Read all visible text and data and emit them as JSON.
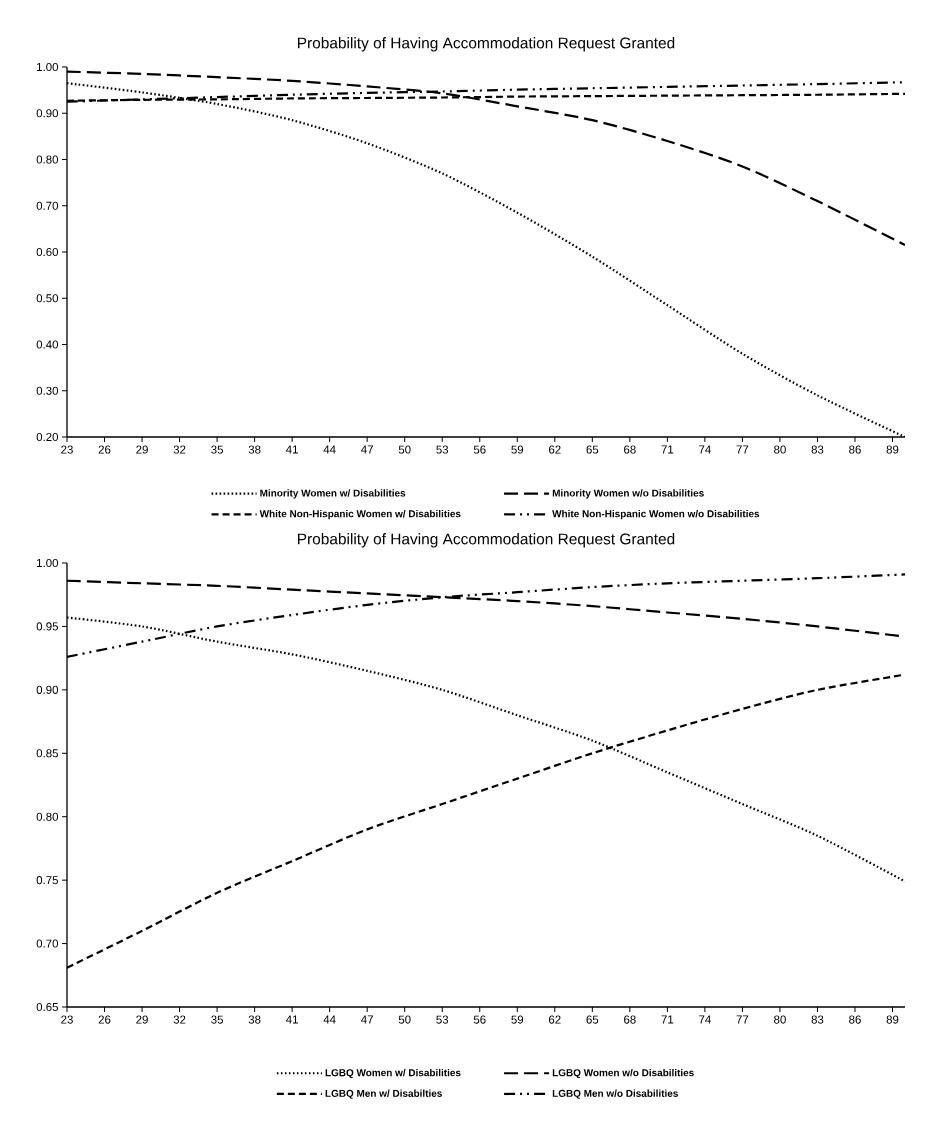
{
  "chart_data": [
    {
      "type": "line",
      "title": "Probability of Having Accommodation Request Granted",
      "x": [
        23,
        29,
        35,
        41,
        47,
        53,
        59,
        65,
        71,
        77,
        83,
        90
      ],
      "xlim": [
        23,
        90
      ],
      "xticks": [
        23,
        26,
        29,
        32,
        35,
        38,
        41,
        44,
        47,
        50,
        53,
        56,
        59,
        62,
        65,
        68,
        71,
        74,
        77,
        80,
        83,
        86,
        89
      ],
      "ylim": [
        0.2,
        1.0
      ],
      "yticks": [
        {
          "value": 0.2,
          "label": "0.20"
        },
        {
          "value": 0.3,
          "label": "0.30"
        },
        {
          "value": 0.4,
          "label": "0.40"
        },
        {
          "value": 0.5,
          "label": "0.50"
        },
        {
          "value": 0.6,
          "label": "0.60"
        },
        {
          "value": 0.7,
          "label": "0.70"
        },
        {
          "value": 0.8,
          "label": "0.80"
        },
        {
          "value": 0.9,
          "label": "0.90"
        },
        {
          "value": 1.0,
          "label": "1.00"
        }
      ],
      "legend": "bottom",
      "series": [
        {
          "name": "Minority Women w/ Disabilities",
          "color": "#000000",
          "line_style": "dotted",
          "values": [
            0.965,
            0.945,
            0.92,
            0.885,
            0.835,
            0.77,
            0.685,
            0.59,
            0.485,
            0.38,
            0.29,
            0.2
          ]
        },
        {
          "name": "Minority Women w/o Disabilities",
          "color": "#000000",
          "line_style": "long dashed",
          "values": [
            0.99,
            0.985,
            0.978,
            0.97,
            0.958,
            0.943,
            0.915,
            0.885,
            0.84,
            0.785,
            0.71,
            0.615
          ]
        },
        {
          "name": "White Non-Hispanic Women w/ Disabilities",
          "color": "#000000",
          "line_style": "dashed",
          "values": [
            0.927,
            0.929,
            0.93,
            0.932,
            0.933,
            0.934,
            0.936,
            0.937,
            0.938,
            0.939,
            0.94,
            0.942
          ]
        },
        {
          "name": "White Non-Hispanic Women w/o Disabilities",
          "color": "#000000",
          "line_style": "dash dot dot",
          "values": [
            0.925,
            0.93,
            0.935,
            0.94,
            0.944,
            0.947,
            0.951,
            0.954,
            0.957,
            0.96,
            0.963,
            0.967
          ]
        }
      ]
    },
    {
      "type": "line",
      "title": "Probability of Having Accommodation Request Granted",
      "x": [
        23,
        29,
        35,
        41,
        47,
        53,
        59,
        65,
        71,
        77,
        83,
        90
      ],
      "xlim": [
        23,
        90
      ],
      "xticks": [
        23,
        26,
        29,
        32,
        35,
        38,
        41,
        44,
        47,
        50,
        53,
        56,
        59,
        62,
        65,
        68,
        71,
        74,
        77,
        80,
        83,
        86,
        89
      ],
      "ylim": [
        0.65,
        1.0
      ],
      "yticks": [
        {
          "value": 0.65,
          "label": "0.65"
        },
        {
          "value": 0.7,
          "label": "0.70"
        },
        {
          "value": 0.75,
          "label": "0.75"
        },
        {
          "value": 0.8,
          "label": "0.80"
        },
        {
          "value": 0.85,
          "label": "0.85"
        },
        {
          "value": 0.9,
          "label": "0.90"
        },
        {
          "value": 0.95,
          "label": "0.95"
        },
        {
          "value": 1.0,
          "label": "1.00"
        }
      ],
      "legend": "bottom",
      "series": [
        {
          "name": "LGBQ Women w/ Disabilities",
          "color": "#000000",
          "line_style": "dotted",
          "values": [
            0.957,
            0.95,
            0.938,
            0.928,
            0.915,
            0.9,
            0.88,
            0.86,
            0.835,
            0.81,
            0.785,
            0.749
          ]
        },
        {
          "name": "LGBQ Women w/o Disabilities",
          "color": "#000000",
          "line_style": "long dashed",
          "values": [
            0.986,
            0.984,
            0.982,
            0.979,
            0.976,
            0.973,
            0.97,
            0.966,
            0.961,
            0.956,
            0.95,
            0.942
          ]
        },
        {
          "name": "LGBQ Men w/ Disabilties",
          "color": "#000000",
          "line_style": "dashed",
          "values": [
            0.681,
            0.71,
            0.74,
            0.765,
            0.79,
            0.81,
            0.83,
            0.85,
            0.868,
            0.885,
            0.9,
            0.912
          ]
        },
        {
          "name": "LGBQ Men w/o Disabilities",
          "color": "#000000",
          "line_style": "dash dot dot",
          "values": [
            0.926,
            0.938,
            0.95,
            0.959,
            0.967,
            0.973,
            0.977,
            0.981,
            0.984,
            0.986,
            0.988,
            0.991
          ]
        }
      ]
    }
  ]
}
